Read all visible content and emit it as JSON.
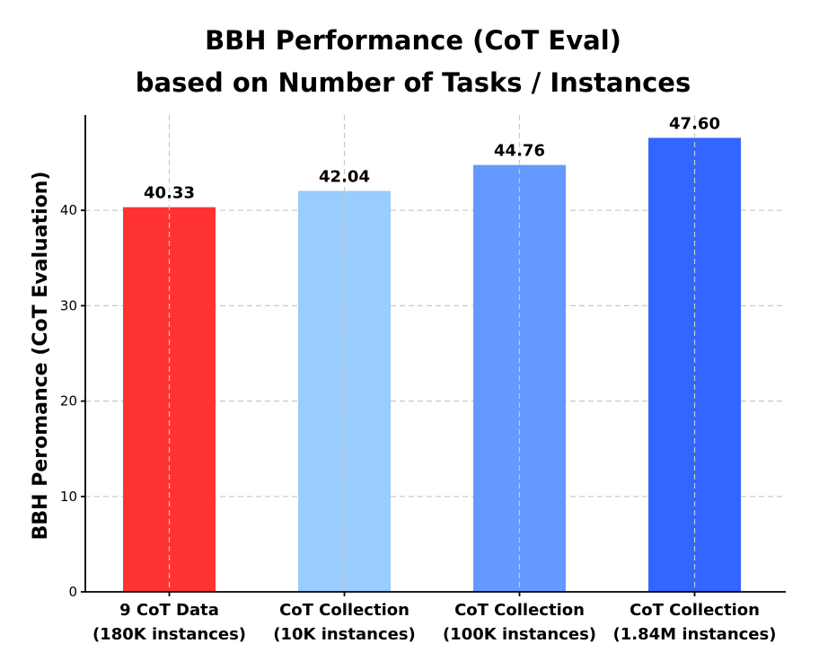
{
  "chart_data": {
    "type": "bar",
    "title": [
      "BBH Performance (CoT Eval)",
      "based on Number of Tasks / Instances"
    ],
    "xlabel": "",
    "ylabel": "BBH Peromance (CoT Evaluation)",
    "ylim": [
      0,
      50
    ],
    "yticks": [
      0,
      10,
      20,
      30,
      40
    ],
    "grid": true,
    "categories": [
      [
        "9 CoT Data",
        "(180K instances)"
      ],
      [
        "CoT Collection",
        "(10K instances)"
      ],
      [
        "CoT Collection",
        "(100K instances)"
      ],
      [
        "CoT Collection",
        "(1.84M instances)"
      ]
    ],
    "values": [
      40.33,
      42.04,
      44.76,
      47.6
    ],
    "value_labels": [
      "40.33",
      "42.04",
      "44.76",
      "47.60"
    ],
    "colors": [
      "#ff3333",
      "#99ccff",
      "#6699ff",
      "#3366ff"
    ]
  }
}
